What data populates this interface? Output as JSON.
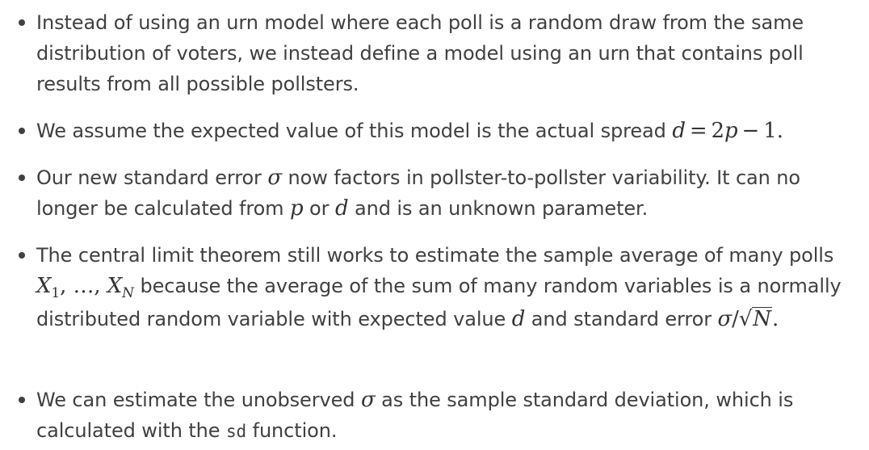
{
  "bullets": [
    {
      "text": "Instead of using an urn model where each poll is a random draw from the same distribution of voters, we instead define a model using an urn that contains poll results from all possible pollsters."
    },
    {
      "text_before": "We assume the expected value of this model is the actual spread ",
      "math": {
        "d": "d",
        "eq": "=",
        "two": "2",
        "p": "p",
        "minus": "−",
        "one": "1",
        "period": "."
      }
    },
    {
      "text_1": "Our new standard error ",
      "sigma": "σ",
      "text_2": " now factors in pollster-to-pollster variability. It can no longer be calculated from ",
      "p": "p",
      "text_3": " or ",
      "d": "d",
      "text_4": " and is an unknown parameter."
    },
    {
      "text_1": "The central limit theorem still works to estimate the sample average of many polls ",
      "math_seq": {
        "X1": "X",
        "sub1": "1",
        "comma1": ",",
        "dots": "…",
        "comma2": ",",
        "XN": "X",
        "subN": "N"
      },
      "text_2": " because the average of the sum of many random variables is a normally distributed random variable with expected value ",
      "d": "d",
      "text_3": " and standard error ",
      "math_se": {
        "sigma": "σ",
        "slash": "/",
        "sqrt_sign": "√",
        "N": "N",
        "period": "."
      }
    },
    {
      "text_1": "We can estimate the unobserved ",
      "sigma": "σ",
      "text_2": " as the sample standard deviation, which is calculated with the ",
      "code": "sd",
      "text_3": " function."
    }
  ]
}
